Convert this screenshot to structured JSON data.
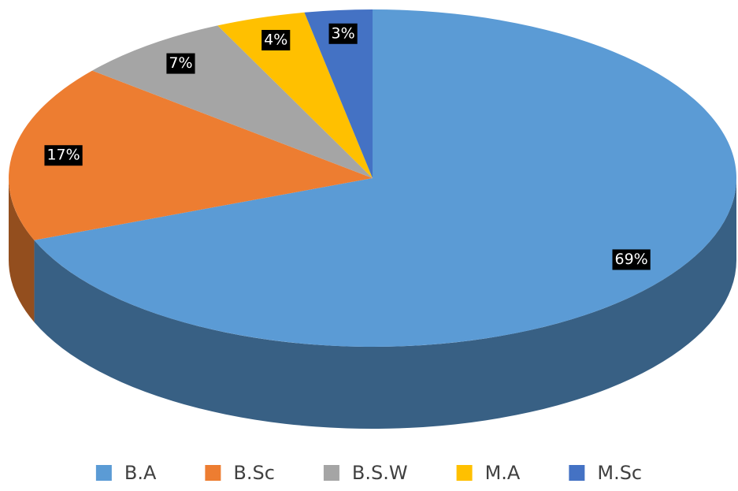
{
  "chart_data": {
    "type": "pie",
    "categories": [
      "B.A",
      "B.Sc",
      "B.S.W",
      "M.A",
      "M.Sc"
    ],
    "values": [
      69,
      17,
      7,
      4,
      3
    ],
    "value_labels": [
      "69%",
      "17%",
      "7%",
      "4%",
      "3%"
    ],
    "colors": [
      "#5b9bd5",
      "#ed7d31",
      "#a5a5a5",
      "#ffc000",
      "#4472c4"
    ],
    "legend": "bottom"
  }
}
